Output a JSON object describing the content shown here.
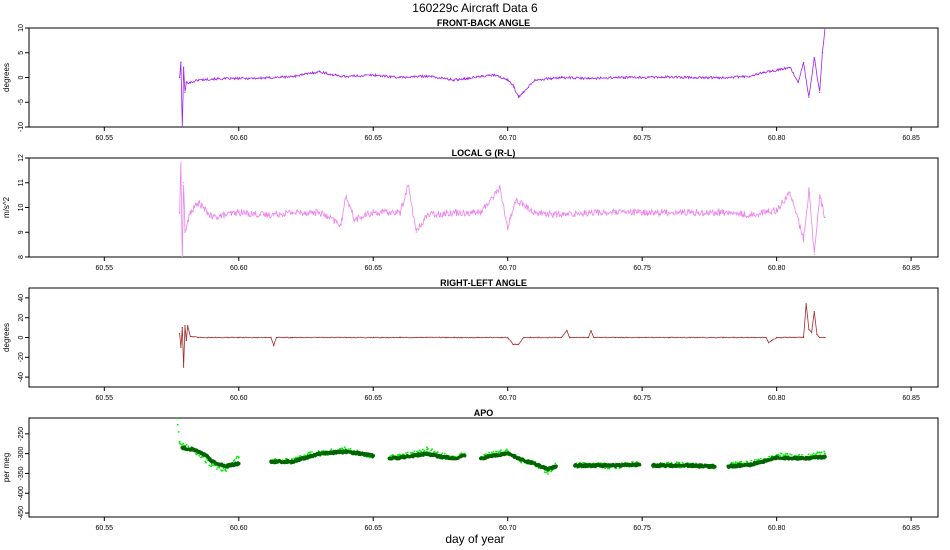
{
  "page_title": "160229c   Aircraft Data 6",
  "xlabel": "day of year",
  "colors": {
    "front_back": "#a020f0",
    "local_g": "#ee82ee",
    "right_left": "#a52a2a",
    "apo_raw": "#00ee00",
    "apo_smooth": "#006400"
  },
  "chart_data": [
    {
      "type": "line",
      "title": "FRONT-BACK ANGLE",
      "ylabel": "degrees",
      "xlim": [
        60.522,
        60.86
      ],
      "ylim": [
        -10,
        10
      ],
      "xticks": [
        60.55,
        60.6,
        60.65,
        60.7,
        60.75,
        60.8,
        60.85
      ],
      "xtick_labels": [
        "60.55",
        "60.60",
        "60.65",
        "60.70",
        "60.75",
        "60.80",
        "60.85"
      ],
      "yticks": [
        -10,
        -5,
        0,
        5,
        10
      ],
      "ytick_labels": [
        "-10",
        "-5",
        "0",
        "5",
        "10"
      ],
      "series": [
        {
          "x": [
            60.578,
            60.5785,
            60.579,
            60.5795,
            60.58,
            60.5805,
            60.582,
            60.585,
            60.59,
            60.6,
            60.61,
            60.62,
            60.63,
            60.635,
            60.64,
            60.65,
            60.66,
            60.67,
            60.68,
            60.69,
            60.695,
            60.7,
            60.702,
            60.704,
            60.71,
            60.72,
            60.73,
            60.74,
            60.75,
            60.76,
            60.77,
            60.78,
            60.79,
            60.795,
            60.8,
            60.805,
            60.808,
            60.81,
            60.812,
            60.814,
            60.816,
            60.817,
            60.818
          ],
          "y": [
            0,
            3,
            -10,
            2,
            -3,
            -1,
            -1,
            -0.5,
            -0.3,
            -0.2,
            -0.1,
            0.2,
            1.2,
            0.5,
            0.2,
            0.5,
            0,
            0.3,
            -0.5,
            0.2,
            0.5,
            -0.5,
            -1.5,
            -4,
            -0.5,
            0,
            -0.2,
            0,
            0,
            0.1,
            0,
            0,
            0.2,
            1,
            1.5,
            2,
            -1,
            3,
            -4,
            4,
            -3,
            5,
            10
          ]
        }
      ]
    },
    {
      "type": "line",
      "title": "LOCAL G (R-L)",
      "ylabel": "m/s^2",
      "xlim": [
        60.522,
        60.86
      ],
      "ylim": [
        8,
        12
      ],
      "xticks": [
        60.55,
        60.6,
        60.65,
        60.7,
        60.75,
        60.8,
        60.85
      ],
      "xtick_labels": [
        "60.55",
        "60.60",
        "60.65",
        "60.70",
        "60.75",
        "60.80",
        "60.85"
      ],
      "yticks": [
        8,
        9,
        10,
        11,
        12
      ],
      "ytick_labels": [
        "8",
        "9",
        "10",
        "11",
        "12"
      ],
      "series": [
        {
          "x": [
            60.578,
            60.5785,
            60.579,
            60.5795,
            60.58,
            60.582,
            60.585,
            60.59,
            60.6,
            60.61,
            60.62,
            60.63,
            60.638,
            60.64,
            60.643,
            60.65,
            60.66,
            60.663,
            60.666,
            60.67,
            60.68,
            60.69,
            60.697,
            60.7,
            60.703,
            60.71,
            60.72,
            60.73,
            60.74,
            60.75,
            60.76,
            60.77,
            60.78,
            60.79,
            60.8,
            60.805,
            60.81,
            60.812,
            60.814,
            60.816,
            60.818
          ],
          "y": [
            9.8,
            11.8,
            8.0,
            11.0,
            9.0,
            9.8,
            10.2,
            9.6,
            9.8,
            9.7,
            9.8,
            9.8,
            9.3,
            10.5,
            9.5,
            9.8,
            9.8,
            10.9,
            9.0,
            9.7,
            9.8,
            9.8,
            10.8,
            9.2,
            10.3,
            9.8,
            9.7,
            9.8,
            9.8,
            9.8,
            9.8,
            9.8,
            9.8,
            9.7,
            9.9,
            10.6,
            8.7,
            10.7,
            8.1,
            10.5,
            9.6
          ]
        }
      ]
    },
    {
      "type": "line",
      "title": "RIGHT-LEFT ANGLE",
      "ylabel": "degrees",
      "xlim": [
        60.522,
        60.86
      ],
      "ylim": [
        -50,
        50
      ],
      "xticks": [
        60.55,
        60.6,
        60.65,
        60.7,
        60.75,
        60.8,
        60.85
      ],
      "xtick_labels": [
        "60.55",
        "60.60",
        "60.65",
        "60.70",
        "60.75",
        "60.80",
        "60.85"
      ],
      "yticks": [
        -40,
        -20,
        0,
        20,
        40
      ],
      "ytick_labels": [
        "-40",
        "-20",
        "0",
        "20",
        "40"
      ],
      "series": [
        {
          "x": [
            60.578,
            60.5785,
            60.579,
            60.5795,
            60.58,
            60.5805,
            60.581,
            60.582,
            60.585,
            60.59,
            60.6,
            60.612,
            60.613,
            60.614,
            60.62,
            60.64,
            60.66,
            60.68,
            60.7,
            60.702,
            60.704,
            60.706,
            60.72,
            60.722,
            60.723,
            60.73,
            60.731,
            60.732,
            60.74,
            60.76,
            60.78,
            60.796,
            60.797,
            60.8,
            60.81,
            60.811,
            60.812,
            60.813,
            60.814,
            60.815,
            60.816,
            60.818
          ],
          "y": [
            4,
            -10,
            10,
            -30,
            12,
            -3,
            12,
            1,
            0,
            0,
            0,
            0,
            -8,
            0,
            0,
            0,
            0,
            0,
            0,
            -7,
            -7,
            0,
            0,
            7,
            0,
            0,
            7,
            0,
            0,
            0,
            0,
            0,
            -5,
            0,
            0,
            34,
            8,
            5,
            26,
            3,
            0,
            0
          ]
        }
      ]
    },
    {
      "type": "scatter",
      "title": "APO",
      "ylabel": "per meg",
      "xlim": [
        60.522,
        60.86
      ],
      "ylim": [
        -460,
        -210
      ],
      "xticks": [
        60.55,
        60.6,
        60.65,
        60.7,
        60.75,
        60.8,
        60.85
      ],
      "xtick_labels": [
        "60.55",
        "60.60",
        "60.65",
        "60.70",
        "60.75",
        "60.80",
        "60.85"
      ],
      "yticks": [
        -250,
        -300,
        -350,
        -400,
        -450
      ],
      "ytick_labels": [
        "-250",
        "-300",
        "-350",
        "-400",
        "-450"
      ],
      "series": [
        {
          "kind": "raw",
          "segments": [
            {
              "x": [
                60.577,
                60.578,
                60.58,
                60.585,
                60.59,
                60.595,
                60.6
              ],
              "y": [
                -210,
                -270,
                -280,
                -300,
                -330,
                -340,
                -310
              ]
            },
            {
              "x": [
                60.612,
                60.62,
                60.625,
                60.63,
                60.635,
                60.64,
                60.645,
                60.65
              ],
              "y": [
                -318,
                -320,
                -305,
                -300,
                -295,
                -290,
                -298,
                -305
              ]
            },
            {
              "x": [
                60.656,
                60.66,
                60.665,
                60.67,
                60.675,
                60.68,
                60.684
              ],
              "y": [
                -310,
                -305,
                -300,
                -290,
                -305,
                -310,
                -300
              ]
            },
            {
              "x": [
                60.69,
                60.695,
                60.7,
                60.705,
                60.71,
                60.715,
                60.718
              ],
              "y": [
                -310,
                -300,
                -295,
                -320,
                -325,
                -345,
                -330
              ]
            },
            {
              "x": [
                60.725,
                60.73,
                60.74,
                60.749
              ],
              "y": [
                -330,
                -328,
                -332,
                -325
              ]
            },
            {
              "x": [
                60.754,
                60.76,
                60.77,
                60.777
              ],
              "y": [
                -330,
                -328,
                -330,
                -332
              ]
            },
            {
              "x": [
                60.782,
                60.79,
                60.795,
                60.8,
                60.81,
                60.818
              ],
              "y": [
                -330,
                -325,
                -318,
                -305,
                -310,
                -300
              ]
            }
          ]
        },
        {
          "kind": "smooth",
          "segments": [
            {
              "x": [
                60.579,
                60.583,
                60.588,
                60.59,
                60.595,
                60.6
              ],
              "y": [
                -285,
                -290,
                -305,
                -320,
                -332,
                -325
              ]
            },
            {
              "x": [
                60.612,
                60.62,
                60.625,
                60.63,
                60.64,
                60.645,
                60.65
              ],
              "y": [
                -320,
                -320,
                -310,
                -300,
                -295,
                -300,
                -305
              ]
            },
            {
              "x": [
                60.656,
                60.66,
                60.665,
                60.67,
                60.675,
                60.68,
                60.684
              ],
              "y": [
                -312,
                -310,
                -305,
                -300,
                -308,
                -312,
                -305
              ]
            },
            {
              "x": [
                60.69,
                60.695,
                60.7,
                60.705,
                60.71,
                60.715,
                60.718
              ],
              "y": [
                -312,
                -305,
                -300,
                -315,
                -325,
                -340,
                -332
              ]
            },
            {
              "x": [
                60.725,
                60.73,
                60.74,
                60.749
              ],
              "y": [
                -330,
                -330,
                -330,
                -328
              ]
            },
            {
              "x": [
                60.754,
                60.76,
                60.77,
                60.777
              ],
              "y": [
                -330,
                -330,
                -330,
                -333
              ]
            },
            {
              "x": [
                60.782,
                60.79,
                60.795,
                60.8,
                60.81,
                60.818
              ],
              "y": [
                -332,
                -328,
                -320,
                -310,
                -312,
                -308
              ]
            }
          ]
        }
      ]
    }
  ]
}
